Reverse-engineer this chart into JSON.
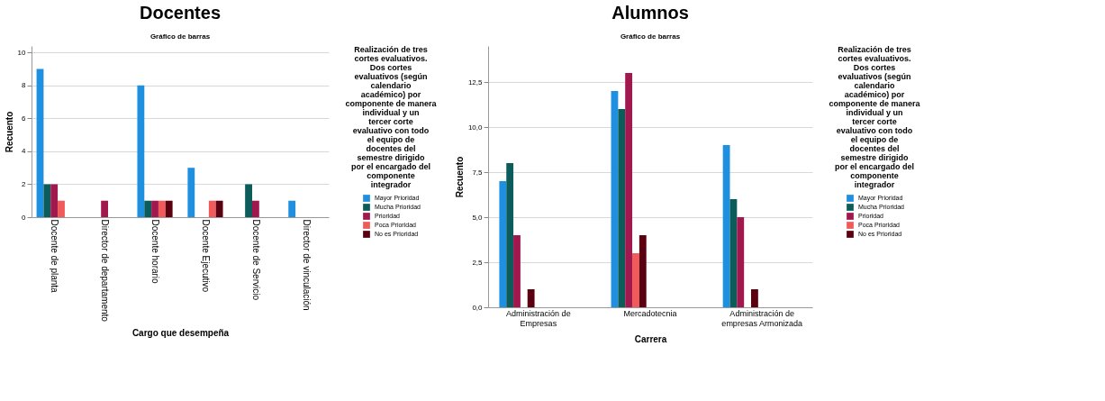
{
  "chart_data": [
    {
      "type": "bar",
      "title": "Docentes",
      "subtitle": "Gráfico de barras",
      "xlabel": "Cargo que desempeña",
      "ylabel": "Recuento",
      "legend_title": "Realización de tres cortes evaluativos. Dos cortes evaluativos (según calendario académico) por componente de manera individual y un tercer corte evaluativo con todo el equipo de docentes del semestre dirigido por el encargado del componente integrador",
      "categories": [
        "Docente de planta",
        "Director de departamento",
        "Docente horario",
        "Docente Ejecutivo",
        "Docente de Servicio",
        "Director de vinculación"
      ],
      "series": [
        {
          "name": "Mayor Prioridad",
          "color": "#1f8fe0",
          "values": [
            9,
            0,
            8,
            3,
            0,
            1
          ]
        },
        {
          "name": "Mucha Prioridad",
          "color": "#0d5c5c",
          "values": [
            2,
            0,
            1,
            0,
            2,
            0
          ]
        },
        {
          "name": "Prioridad",
          "color": "#a0184e",
          "values": [
            2,
            1,
            1,
            0,
            1,
            0
          ]
        },
        {
          "name": "Poca Prioridad",
          "color": "#f05a5a",
          "values": [
            1,
            0,
            1,
            1,
            0,
            0
          ]
        },
        {
          "name": "No es Prioridad",
          "color": "#5a0010",
          "values": [
            0,
            0,
            1,
            1,
            0,
            0
          ]
        }
      ],
      "ylim": [
        0,
        10.4
      ],
      "yticks": [
        0,
        2,
        4,
        6,
        8,
        10
      ],
      "grid": "y",
      "legend": "right"
    },
    {
      "type": "bar",
      "title": "Alumnos",
      "subtitle": "Gráfico de barras",
      "xlabel": "Carrera",
      "ylabel": "Recuento",
      "legend_title": "Realización de tres cortes evaluativos. Dos cortes evaluativos (según calendario académico) por componente de manera individual y un tercer corte evaluativo con todo el equipo de docentes del semestre dirigido por el encargado del componente integrador",
      "categories": [
        "Administración de Empresas",
        "Mercadotecnia",
        "Administración de empresas Armonizada"
      ],
      "series": [
        {
          "name": "Mayor Prioridad",
          "color": "#1f8fe0",
          "values": [
            7,
            12,
            9
          ]
        },
        {
          "name": "Mucha Prioridad",
          "color": "#0d5c5c",
          "values": [
            8,
            11,
            6
          ]
        },
        {
          "name": "Prioridad",
          "color": "#a0184e",
          "values": [
            4,
            13,
            5
          ]
        },
        {
          "name": "Poca Prioridad",
          "color": "#f05a5a",
          "values": [
            0,
            3,
            0
          ]
        },
        {
          "name": "No es Prioridad",
          "color": "#5a0010",
          "values": [
            1,
            4,
            1
          ]
        }
      ],
      "ylim": [
        0,
        14.5
      ],
      "yticks": [
        {
          "value": 0,
          "label": "0,0"
        },
        {
          "value": 2.5,
          "label": "2,5"
        },
        {
          "value": 5,
          "label": "5,0"
        },
        {
          "value": 7.5,
          "label": "7,5"
        },
        {
          "value": 10,
          "label": "10,0"
        },
        {
          "value": 12.5,
          "label": "12,5"
        }
      ],
      "grid": "y",
      "legend": "right"
    }
  ]
}
